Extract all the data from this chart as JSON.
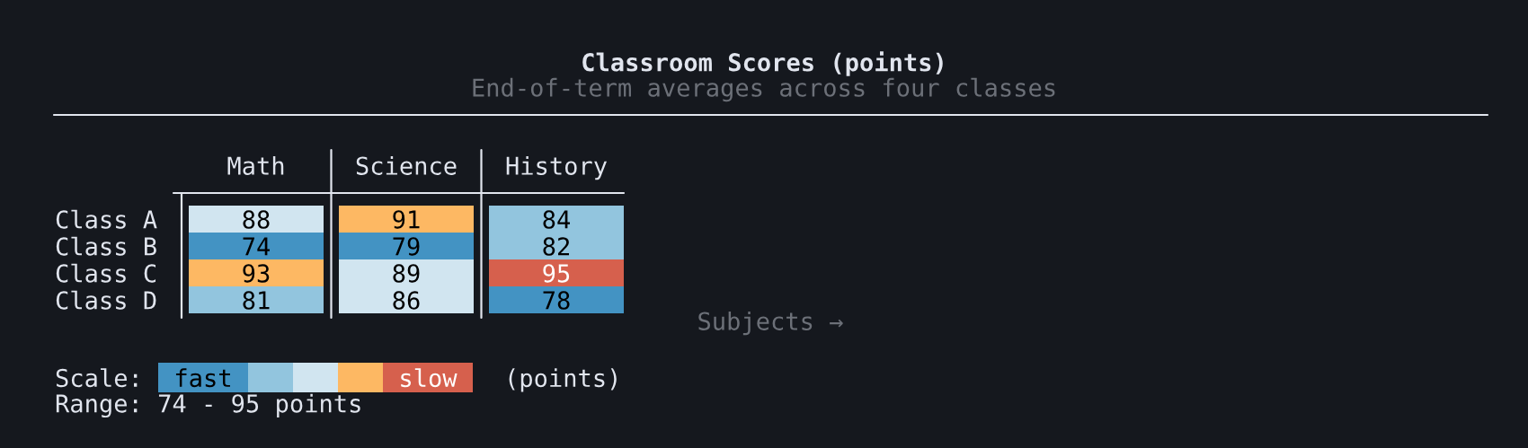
{
  "chart_data": {
    "type": "heatmap",
    "title": "Classroom Scores (points)",
    "subtitle": "End-of-term averages across four classes",
    "xlabel": "Subjects →",
    "clabel": "(points)",
    "categories": [
      "Math",
      "Science",
      "History"
    ],
    "y_categories": [
      "Class A",
      "Class B",
      "Class C",
      "Class D"
    ],
    "cells": [
      [
        88,
        91,
        84
      ],
      [
        74,
        79,
        82
      ],
      [
        93,
        89,
        95
      ],
      [
        81,
        86,
        78
      ]
    ],
    "colors": [
      [
        "#d1e5f0",
        "#fdb863",
        "#92c5de"
      ],
      [
        "#4393c3",
        "#4393c3",
        "#92c5de"
      ],
      [
        "#fdb863",
        "#d1e5f0",
        "#d6604d"
      ],
      [
        "#92c5de",
        "#d1e5f0",
        "#4393c3"
      ]
    ],
    "data_labels": true,
    "annotations": [
      "Scale:",
      "fast",
      "slow",
      "Range: 74 - 95 points"
    ]
  }
}
